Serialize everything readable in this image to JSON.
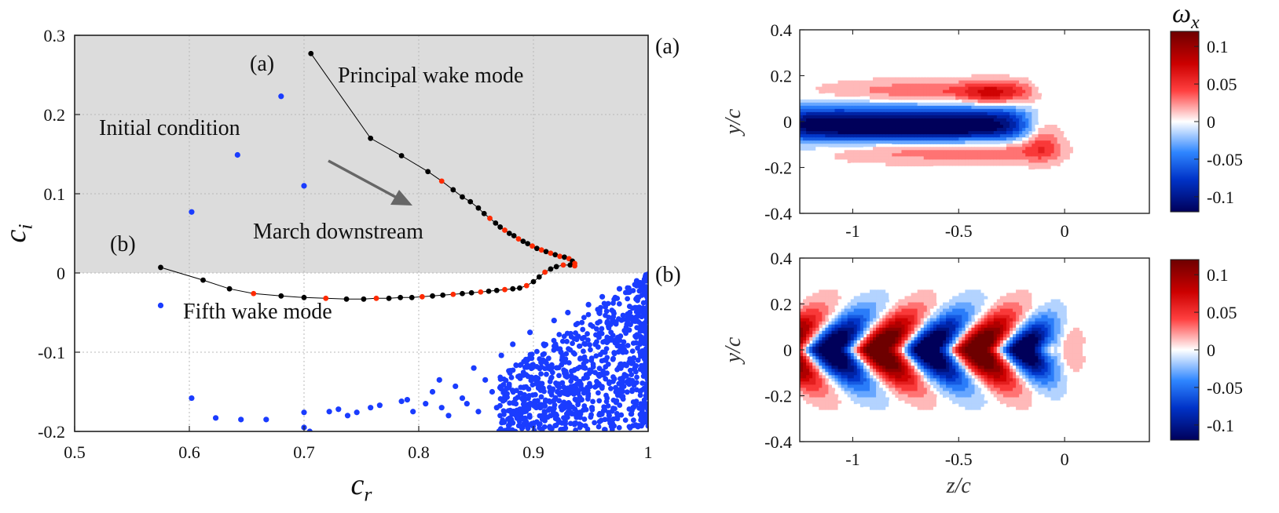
{
  "chart_data": [
    {
      "type": "scatter",
      "title": "",
      "xlabel": "c_r",
      "ylabel": "c_i",
      "xlim": [
        0.5,
        1.0
      ],
      "ylim": [
        -0.2,
        0.3
      ],
      "xticks": [
        "0.5",
        "0.6",
        "0.7",
        "0.8",
        "0.9",
        "1"
      ],
      "yticks": [
        "-0.2",
        "-0.1",
        "0",
        "0.1",
        "0.2",
        "0.3"
      ],
      "shaded_region": "c_i > 0",
      "grid": true,
      "annotations": {
        "label_a": "(a)",
        "label_b": "(b)",
        "principal": "Principal wake mode",
        "initial": "Initial condition",
        "march": "March downstream",
        "fifth": "Fifth wake mode"
      },
      "colors": {
        "path": "#000000",
        "highlight": "#ff2a00",
        "initial": "#1a3cff",
        "shade": "#dcdcdc",
        "arrow": "#666666",
        "march_text": "#6e6e6e"
      },
      "series": [
        {
          "name": "Principal wake mode trajectory",
          "points": [
            [
              0.706,
              0.277
            ],
            [
              0.758,
              0.17
            ],
            [
              0.785,
              0.148
            ],
            [
              0.808,
              0.128
            ],
            [
              0.82,
              0.116
            ],
            [
              0.83,
              0.105
            ],
            [
              0.838,
              0.096
            ],
            [
              0.845,
              0.09
            ],
            [
              0.852,
              0.082
            ],
            [
              0.857,
              0.075
            ],
            [
              0.862,
              0.069
            ],
            [
              0.867,
              0.063
            ],
            [
              0.871,
              0.058
            ],
            [
              0.875,
              0.054
            ],
            [
              0.879,
              0.05
            ],
            [
              0.883,
              0.047
            ],
            [
              0.887,
              0.043
            ],
            [
              0.891,
              0.04
            ],
            [
              0.895,
              0.037
            ],
            [
              0.899,
              0.034
            ],
            [
              0.903,
              0.031
            ],
            [
              0.907,
              0.029
            ],
            [
              0.911,
              0.027
            ],
            [
              0.915,
              0.025
            ],
            [
              0.919,
              0.023
            ],
            [
              0.923,
              0.021
            ],
            [
              0.927,
              0.02
            ],
            [
              0.931,
              0.018
            ],
            [
              0.934,
              0.015
            ],
            [
              0.936,
              0.012
            ]
          ],
          "red_indices": [
            4,
            10,
            13,
            16,
            19,
            21,
            23,
            25,
            27,
            29
          ]
        },
        {
          "name": "Fifth wake mode trajectory",
          "points": [
            [
              0.575,
              0.007
            ],
            [
              0.612,
              -0.009
            ],
            [
              0.635,
              -0.02
            ],
            [
              0.656,
              -0.026
            ],
            [
              0.68,
              -0.029
            ],
            [
              0.7,
              -0.031
            ],
            [
              0.719,
              -0.032
            ],
            [
              0.737,
              -0.033
            ],
            [
              0.752,
              -0.033
            ],
            [
              0.763,
              -0.032
            ],
            [
              0.774,
              -0.032
            ],
            [
              0.784,
              -0.031
            ],
            [
              0.794,
              -0.031
            ],
            [
              0.803,
              -0.03
            ],
            [
              0.812,
              -0.029
            ],
            [
              0.821,
              -0.028
            ],
            [
              0.83,
              -0.027
            ],
            [
              0.838,
              -0.026
            ],
            [
              0.846,
              -0.025
            ],
            [
              0.854,
              -0.024
            ],
            [
              0.861,
              -0.023
            ],
            [
              0.868,
              -0.022
            ],
            [
              0.875,
              -0.021
            ],
            [
              0.882,
              -0.02
            ],
            [
              0.888,
              -0.019
            ],
            [
              0.894,
              -0.016
            ],
            [
              0.9,
              -0.011
            ],
            [
              0.905,
              -0.005
            ],
            [
              0.91,
              0.001
            ],
            [
              0.915,
              0.005
            ],
            [
              0.92,
              0.008
            ],
            [
              0.926,
              0.01
            ],
            [
              0.932,
              0.01
            ],
            [
              0.936,
              0.009
            ]
          ],
          "red_indices": [
            3,
            6,
            9,
            13,
            16,
            19,
            22,
            25,
            28,
            31,
            33
          ]
        },
        {
          "name": "Initial condition",
          "points": [
            [
              0.68,
              0.223
            ],
            [
              0.642,
              0.149
            ],
            [
              0.7,
              0.11
            ],
            [
              0.602,
              0.077
            ],
            [
              0.575,
              -0.041
            ],
            [
              0.602,
              -0.158
            ],
            [
              0.623,
              -0.183
            ],
            [
              0.645,
              -0.185
            ],
            [
              0.667,
              -0.185
            ],
            [
              0.7,
              -0.176
            ],
            [
              0.7,
              -0.195
            ],
            [
              0.705,
              -0.2
            ],
            [
              0.722,
              -0.175
            ],
            [
              0.73,
              -0.172
            ],
            [
              0.738,
              -0.18
            ],
            [
              0.746,
              -0.176
            ],
            [
              0.758,
              -0.17
            ],
            [
              0.766,
              -0.167
            ],
            [
              0.785,
              -0.162
            ],
            [
              0.79,
              -0.16
            ],
            [
              0.795,
              -0.175
            ],
            [
              0.806,
              -0.165
            ],
            [
              0.812,
              -0.15
            ],
            [
              0.818,
              -0.135
            ],
            [
              0.82,
              -0.17
            ],
            [
              0.826,
              -0.18
            ],
            [
              0.832,
              -0.143
            ],
            [
              0.838,
              -0.158
            ],
            [
              0.842,
              -0.165
            ],
            [
              0.848,
              -0.12
            ],
            [
              0.852,
              -0.175
            ],
            [
              0.858,
              -0.135
            ],
            [
              0.864,
              -0.15
            ],
            [
              0.868,
              -0.17
            ],
            [
              0.872,
              -0.104
            ],
            [
              0.875,
              -0.16
            ],
            [
              0.878,
              -0.145
            ],
            [
              0.882,
              -0.09
            ],
            [
              0.885,
              -0.18
            ],
            [
              0.888,
              -0.13
            ],
            [
              0.891,
              -0.16
            ],
            [
              0.894,
              -0.11
            ],
            [
              0.897,
              -0.075
            ],
            [
              0.9,
              -0.19
            ],
            [
              0.903,
              -0.14
            ],
            [
              0.906,
              -0.17
            ],
            [
              0.909,
              -0.09
            ],
            [
              0.912,
              -0.12
            ],
            [
              0.915,
              -0.18
            ],
            [
              0.918,
              -0.06
            ],
            [
              0.921,
              -0.15
            ],
            [
              0.924,
              -0.1
            ],
            [
              0.927,
              -0.17
            ],
            [
              0.93,
              -0.05
            ],
            [
              0.933,
              -0.13
            ],
            [
              0.936,
              -0.19
            ],
            [
              0.939,
              -0.08
            ],
            [
              0.942,
              -0.16
            ],
            [
              0.945,
              -0.12
            ],
            [
              0.948,
              -0.04
            ],
            [
              0.951,
              -0.17
            ],
            [
              0.954,
              -0.09
            ],
            [
              0.957,
              -0.14
            ],
            [
              0.96,
              -0.03
            ],
            [
              0.963,
              -0.11
            ],
            [
              0.966,
              -0.18
            ],
            [
              0.969,
              -0.06
            ],
            [
              0.972,
              -0.15
            ],
            [
              0.975,
              -0.02
            ],
            [
              0.978,
              -0.1
            ],
            [
              0.981,
              -0.13
            ],
            [
              0.984,
              -0.05
            ],
            [
              0.987,
              -0.17
            ],
            [
              0.99,
              -0.01
            ],
            [
              0.993,
              -0.08
            ],
            [
              0.996,
              -0.12
            ],
            [
              0.999,
              -0.03
            ],
            [
              1.0,
              -0.15
            ],
            [
              1.0,
              -0.06
            ]
          ],
          "dense_region": {
            "x_range": [
              0.87,
              1.0
            ],
            "y_range": [
              -0.2,
              0.0
            ],
            "count": 900,
            "seed": 7
          }
        }
      ]
    },
    {
      "type": "heatmap",
      "panel_label": "(a)",
      "xlim": [
        -1.25,
        0.4
      ],
      "ylim": [
        -0.4,
        0.4
      ],
      "xticks": [
        "-1",
        "-0.5",
        "0"
      ],
      "yticks": [
        "-0.4",
        "-0.2",
        "0",
        "0.2",
        "0.4"
      ],
      "ylabel": "y/c",
      "xlabel": "",
      "colorbar_label": "ω_x",
      "colorbar_ticks": [
        "0.1",
        "0.05",
        "0",
        "-0.05",
        "-0.1"
      ],
      "colorbar_range": [
        -0.12,
        0.12
      ],
      "pattern": "principal"
    },
    {
      "type": "heatmap",
      "panel_label": "(b)",
      "xlim": [
        -1.25,
        0.4
      ],
      "ylim": [
        -0.4,
        0.4
      ],
      "xticks": [
        "-1",
        "-0.5",
        "0"
      ],
      "yticks": [
        "-0.4",
        "-0.2",
        "0",
        "0.2",
        "0.4"
      ],
      "ylabel": "y/c",
      "xlabel": "z/c",
      "colorbar_ticks": [
        "0.1",
        "0.05",
        "0",
        "-0.05",
        "-0.1"
      ],
      "colorbar_range": [
        -0.12,
        0.12
      ],
      "pattern": "fifth"
    }
  ]
}
